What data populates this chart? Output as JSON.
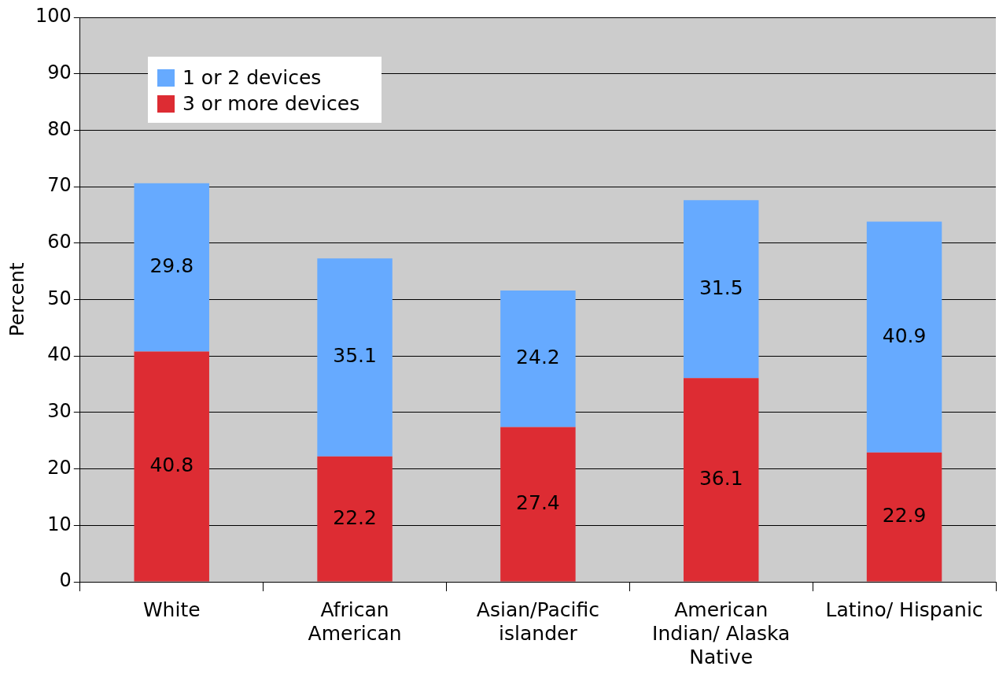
{
  "chart_data": {
    "type": "bar",
    "stacked": true,
    "ylabel": "Percent",
    "categories": [
      "White",
      "African American",
      "Asian/Pacific islander",
      "American Indian/ Alaska Native",
      "Latino/ Hispanic"
    ],
    "series": [
      {
        "name": "3 or more devices",
        "color": "#dd2c33",
        "values": [
          40.8,
          22.2,
          27.4,
          36.1,
          22.9
        ]
      },
      {
        "name": "1 or 2 devices",
        "color": "#66aaff",
        "values": [
          29.8,
          35.1,
          24.2,
          31.5,
          40.9
        ]
      }
    ],
    "ylim": [
      0,
      100
    ],
    "yticks": [
      0,
      10,
      20,
      30,
      40,
      50,
      60,
      70,
      80,
      90,
      100
    ],
    "grid": "y",
    "legend": "top left",
    "data_labels": true
  }
}
